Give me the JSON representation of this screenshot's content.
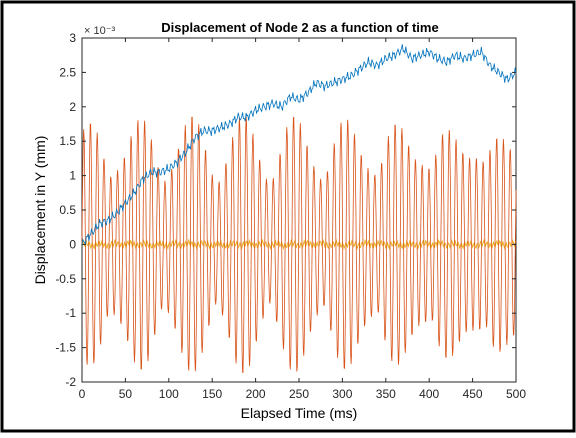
{
  "chart_data": {
    "type": "line",
    "title": "Displacement of Node 2 as a function of time",
    "xlabel": "Elapsed Time (ms)",
    "ylabel": "Displacement in Y (mm)",
    "y_exponent_label": "× 10⁻³",
    "y_multiplier": 0.001,
    "xlim": [
      0,
      500
    ],
    "ylim": [
      -2,
      3
    ],
    "x_ticks": [
      0,
      50,
      100,
      150,
      200,
      250,
      300,
      350,
      400,
      450,
      500
    ],
    "x_tick_labels": [
      "0",
      "50",
      "100",
      "150",
      "200",
      "250",
      "300",
      "350",
      "400",
      "450",
      "500"
    ],
    "y_ticks": [
      -2,
      -1.5,
      -1,
      -0.5,
      0,
      0.5,
      1,
      1.5,
      2,
      2.5,
      3
    ],
    "y_tick_labels": [
      "-2",
      "-1.5",
      "-1",
      "-0.5",
      "0",
      "0.5",
      "1",
      "1.5",
      "2",
      "2.5",
      "3"
    ],
    "grid": false,
    "legend": "none",
    "series": [
      {
        "color": "#0072BD",
        "x": [
          0,
          10,
          20,
          30,
          40,
          50,
          60,
          70,
          80,
          90,
          100,
          110,
          120,
          130,
          140,
          150,
          160,
          170,
          180,
          190,
          200,
          210,
          220,
          230,
          240,
          250,
          260,
          270,
          280,
          290,
          300,
          310,
          320,
          330,
          340,
          350,
          360,
          370,
          380,
          390,
          400,
          410,
          420,
          430,
          440,
          450,
          460,
          470,
          480,
          490,
          500
        ],
        "y": [
          0,
          0.15,
          0.3,
          0.35,
          0.45,
          0.6,
          0.75,
          0.95,
          1.05,
          1.05,
          1.1,
          1.2,
          1.35,
          1.55,
          1.65,
          1.65,
          1.7,
          1.75,
          1.85,
          1.85,
          1.95,
          2.0,
          2.05,
          2.0,
          2.15,
          2.1,
          2.2,
          2.35,
          2.3,
          2.35,
          2.4,
          2.45,
          2.55,
          2.65,
          2.6,
          2.7,
          2.75,
          2.85,
          2.7,
          2.75,
          2.8,
          2.7,
          2.65,
          2.75,
          2.7,
          2.75,
          2.8,
          2.6,
          2.5,
          2.4,
          2.5
        ]
      },
      {
        "color": "#D95319",
        "form": "oscillation",
        "amplitude_max": 1.9,
        "amplitude_min": 0.5,
        "approx_peak_values": [
          -1.75,
          1.9,
          -1.6,
          1.75,
          -1.8,
          1.95,
          -1.55,
          1.85,
          -1.7,
          1.9,
          -1.6,
          1.8,
          -1.65,
          1.85
        ]
      },
      {
        "color": "#EDB120",
        "form": "near-zero",
        "approx_value": 0.0
      }
    ]
  }
}
